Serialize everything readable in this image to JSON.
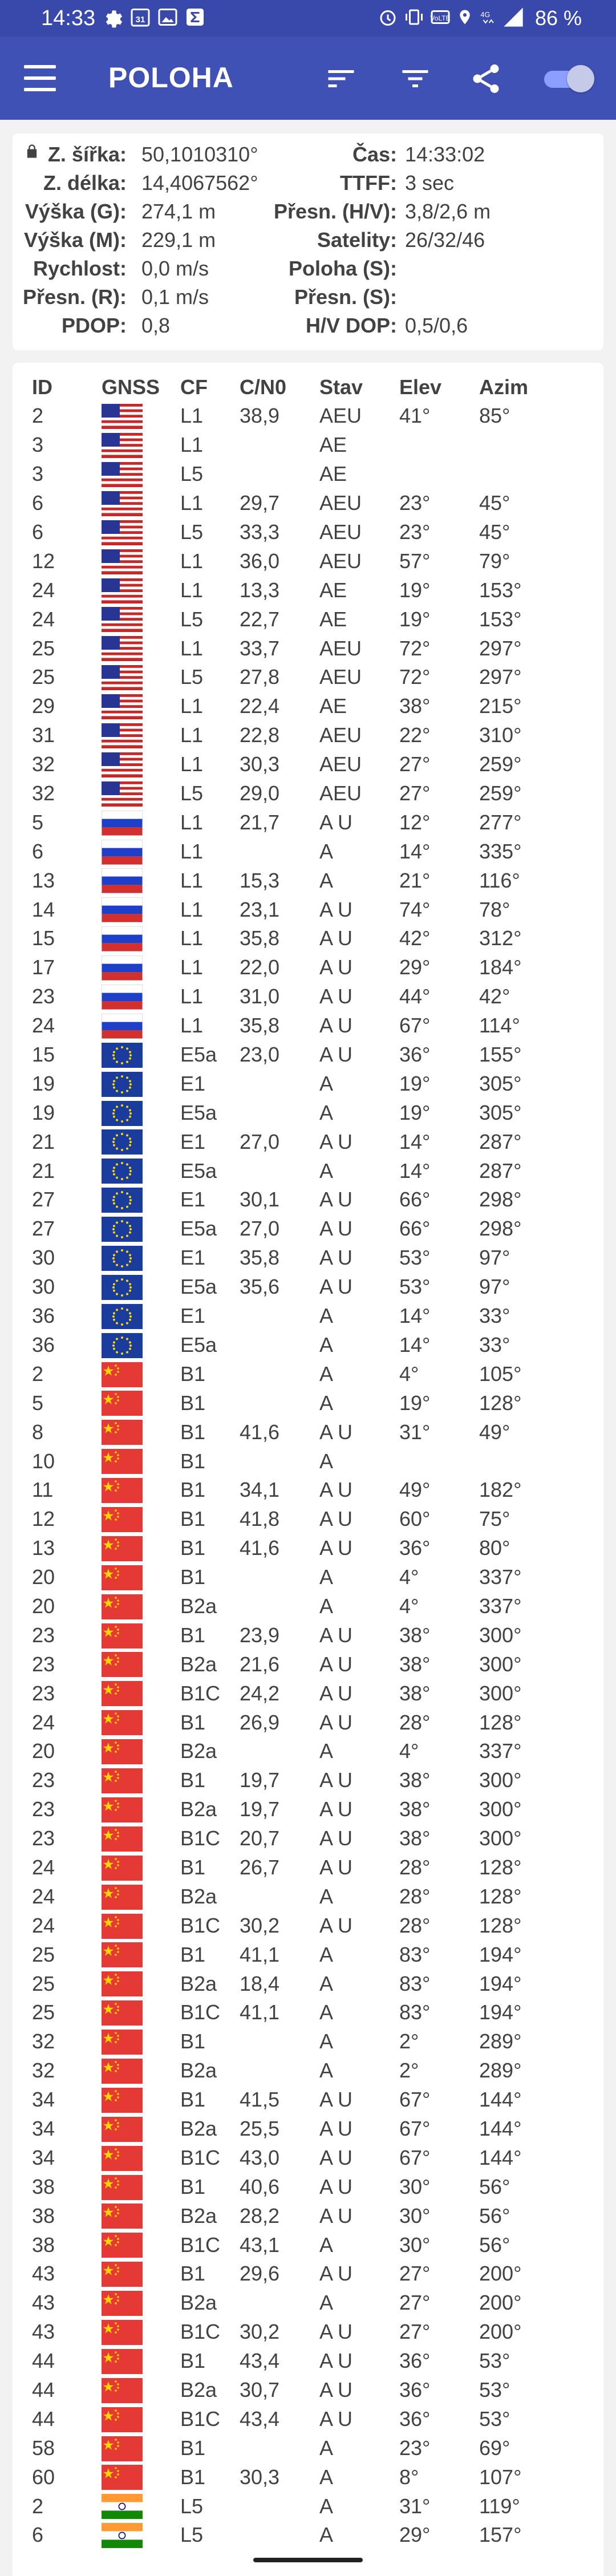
{
  "status_bar": {
    "time": "14:33",
    "notification_icons": [
      "gear-icon",
      "calendar-31-icon",
      "image-icon",
      "sigma-icon"
    ],
    "right_icons": [
      "alarm-icon",
      "vibrate-icon",
      "wifi-calling-icon",
      "location-icon",
      "4g-icon",
      "signal-icon"
    ],
    "battery": "86 %"
  },
  "app_bar": {
    "title": "POLOHA",
    "actions": [
      "menu-icon",
      "sort-icon",
      "filter-icon",
      "share-icon",
      "toggle-switch"
    ],
    "toggle_on": true,
    "primary_color": "#3f51b5"
  },
  "location": {
    "lat_label": "Z. šířka:",
    "lat_value": "50,1010310°",
    "lon_label": "Z. délka:",
    "lon_value": "14,4067562°",
    "alt_g_label": "Výška (G):",
    "alt_g_value": "274,1 m",
    "alt_m_label": "Výška (M):",
    "alt_m_value": "229,1 m",
    "speed_label": "Rychlost:",
    "speed_value": "0,0 m/s",
    "acc_r_label": "Přesn. (R):",
    "acc_r_value": "0,1 m/s",
    "pdop_label": "PDOP:",
    "pdop_value": "0,8",
    "time_label": "Čas:",
    "time_value": "14:33:02",
    "ttff_label": "TTFF:",
    "ttff_value": "3 sec",
    "acc_hv_label": "Přesn. (H/V):",
    "acc_hv_value": "3,8/2,6 m",
    "sats_label": "Satelity:",
    "sats_value": "26/32/46",
    "pos_s_label": "Poloha (S):",
    "pos_s_value": "",
    "acc_s_label": "Přesn. (S):",
    "acc_s_value": "",
    "hvdop_label": "H/V DOP:",
    "hvdop_value": "0,5/0,6"
  },
  "sat_table": {
    "headers": [
      "ID",
      "GNSS",
      "CF",
      "C/N0",
      "Stav",
      "Elev",
      "Azim"
    ],
    "rows": [
      [
        "2",
        "us",
        "L1",
        "38,9",
        "AEU",
        "41°",
        "85°"
      ],
      [
        "3",
        "us",
        "L1",
        "",
        "AE",
        "",
        ""
      ],
      [
        "3",
        "us",
        "L5",
        "",
        "AE",
        "",
        ""
      ],
      [
        "6",
        "us",
        "L1",
        "29,7",
        "AEU",
        "23°",
        "45°"
      ],
      [
        "6",
        "us",
        "L5",
        "33,3",
        "AEU",
        "23°",
        "45°"
      ],
      [
        "12",
        "us",
        "L1",
        "36,0",
        "AEU",
        "57°",
        "79°"
      ],
      [
        "24",
        "us",
        "L1",
        "13,3",
        "AE",
        "19°",
        "153°"
      ],
      [
        "24",
        "us",
        "L5",
        "22,7",
        "AE",
        "19°",
        "153°"
      ],
      [
        "25",
        "us",
        "L1",
        "33,7",
        "AEU",
        "72°",
        "297°"
      ],
      [
        "25",
        "us",
        "L5",
        "27,8",
        "AEU",
        "72°",
        "297°"
      ],
      [
        "29",
        "us",
        "L1",
        "22,4",
        "AE",
        "38°",
        "215°"
      ],
      [
        "31",
        "us",
        "L1",
        "22,8",
        "AEU",
        "22°",
        "310°"
      ],
      [
        "32",
        "us",
        "L1",
        "30,3",
        "AEU",
        "27°",
        "259°"
      ],
      [
        "32",
        "us",
        "L5",
        "29,0",
        "AEU",
        "27°",
        "259°"
      ],
      [
        "5",
        "ru",
        "L1",
        "21,7",
        "A U",
        "12°",
        "277°"
      ],
      [
        "6",
        "ru",
        "L1",
        "",
        "A",
        "14°",
        "335°"
      ],
      [
        "13",
        "ru",
        "L1",
        "15,3",
        "A",
        "21°",
        "116°"
      ],
      [
        "14",
        "ru",
        "L1",
        "23,1",
        "A U",
        "74°",
        "78°"
      ],
      [
        "15",
        "ru",
        "L1",
        "35,8",
        "A U",
        "42°",
        "312°"
      ],
      [
        "17",
        "ru",
        "L1",
        "22,0",
        "A U",
        "29°",
        "184°"
      ],
      [
        "23",
        "ru",
        "L1",
        "31,0",
        "A U",
        "44°",
        "42°"
      ],
      [
        "24",
        "ru",
        "L1",
        "35,8",
        "A U",
        "67°",
        "114°"
      ],
      [
        "15",
        "eu",
        "E5a",
        "23,0",
        "A U",
        "36°",
        "155°"
      ],
      [
        "19",
        "eu",
        "E1",
        "",
        "A",
        "19°",
        "305°"
      ],
      [
        "19",
        "eu",
        "E5a",
        "",
        "A",
        "19°",
        "305°"
      ],
      [
        "21",
        "eu",
        "E1",
        "27,0",
        "A U",
        "14°",
        "287°"
      ],
      [
        "21",
        "eu",
        "E5a",
        "",
        "A",
        "14°",
        "287°"
      ],
      [
        "27",
        "eu",
        "E1",
        "30,1",
        "A U",
        "66°",
        "298°"
      ],
      [
        "27",
        "eu",
        "E5a",
        "27,0",
        "A U",
        "66°",
        "298°"
      ],
      [
        "30",
        "eu",
        "E1",
        "35,8",
        "A U",
        "53°",
        "97°"
      ],
      [
        "30",
        "eu",
        "E5a",
        "35,6",
        "A U",
        "53°",
        "97°"
      ],
      [
        "36",
        "eu",
        "E1",
        "",
        "A",
        "14°",
        "33°"
      ],
      [
        "36",
        "eu",
        "E5a",
        "",
        "A",
        "14°",
        "33°"
      ],
      [
        "2",
        "cn",
        "B1",
        "",
        "A",
        "4°",
        "105°"
      ],
      [
        "5",
        "cn",
        "B1",
        "",
        "A",
        "19°",
        "128°"
      ],
      [
        "8",
        "cn",
        "B1",
        "41,6",
        "A U",
        "31°",
        "49°"
      ],
      [
        "10",
        "cn",
        "B1",
        "",
        "A",
        "",
        ""
      ],
      [
        "11",
        "cn",
        "B1",
        "34,1",
        "A U",
        "49°",
        "182°"
      ],
      [
        "12",
        "cn",
        "B1",
        "41,8",
        "A U",
        "60°",
        "75°"
      ],
      [
        "13",
        "cn",
        "B1",
        "41,6",
        "A U",
        "36°",
        "80°"
      ],
      [
        "20",
        "cn",
        "B1",
        "",
        "A",
        "4°",
        "337°"
      ],
      [
        "20",
        "cn",
        "B2a",
        "",
        "A",
        "4°",
        "337°"
      ],
      [
        "23",
        "cn",
        "B1",
        "23,9",
        "A U",
        "38°",
        "300°"
      ],
      [
        "23",
        "cn",
        "B2a",
        "21,6",
        "A U",
        "38°",
        "300°"
      ],
      [
        "23",
        "cn",
        "B1C",
        "24,2",
        "A U",
        "38°",
        "300°"
      ],
      [
        "24",
        "cn",
        "B1",
        "26,9",
        "A U",
        "28°",
        "128°"
      ],
      [
        "20",
        "cn",
        "B2a",
        "",
        "A",
        "4°",
        "337°"
      ],
      [
        "23",
        "cn",
        "B1",
        "19,7",
        "A U",
        "38°",
        "300°"
      ],
      [
        "23",
        "cn",
        "B2a",
        "19,7",
        "A U",
        "38°",
        "300°"
      ],
      [
        "23",
        "cn",
        "B1C",
        "20,7",
        "A U",
        "38°",
        "300°"
      ],
      [
        "24",
        "cn",
        "B1",
        "26,7",
        "A U",
        "28°",
        "128°"
      ],
      [
        "24",
        "cn",
        "B2a",
        "",
        "A",
        "28°",
        "128°"
      ],
      [
        "24",
        "cn",
        "B1C",
        "30,2",
        "A U",
        "28°",
        "128°"
      ],
      [
        "25",
        "cn",
        "B1",
        "41,1",
        "A",
        "83°",
        "194°"
      ],
      [
        "25",
        "cn",
        "B2a",
        "18,4",
        "A",
        "83°",
        "194°"
      ],
      [
        "25",
        "cn",
        "B1C",
        "41,1",
        "A",
        "83°",
        "194°"
      ],
      [
        "32",
        "cn",
        "B1",
        "",
        "A",
        "2°",
        "289°"
      ],
      [
        "32",
        "cn",
        "B2a",
        "",
        "A",
        "2°",
        "289°"
      ],
      [
        "34",
        "cn",
        "B1",
        "41,5",
        "A U",
        "67°",
        "144°"
      ],
      [
        "34",
        "cn",
        "B2a",
        "25,5",
        "A U",
        "67°",
        "144°"
      ],
      [
        "34",
        "cn",
        "B1C",
        "43,0",
        "A U",
        "67°",
        "144°"
      ],
      [
        "38",
        "cn",
        "B1",
        "40,6",
        "A U",
        "30°",
        "56°"
      ],
      [
        "38",
        "cn",
        "B2a",
        "28,2",
        "A U",
        "30°",
        "56°"
      ],
      [
        "38",
        "cn",
        "B1C",
        "43,1",
        "A",
        "30°",
        "56°"
      ],
      [
        "43",
        "cn",
        "B1",
        "29,6",
        "A U",
        "27°",
        "200°"
      ],
      [
        "43",
        "cn",
        "B2a",
        "",
        "A",
        "27°",
        "200°"
      ],
      [
        "43",
        "cn",
        "B1C",
        "30,2",
        "A U",
        "27°",
        "200°"
      ],
      [
        "44",
        "cn",
        "B1",
        "43,4",
        "A U",
        "36°",
        "53°"
      ],
      [
        "44",
        "cn",
        "B2a",
        "30,7",
        "A U",
        "36°",
        "53°"
      ],
      [
        "44",
        "cn",
        "B1C",
        "43,4",
        "A U",
        "36°",
        "53°"
      ],
      [
        "58",
        "cn",
        "B1",
        "",
        "A",
        "23°",
        "69°"
      ],
      [
        "60",
        "cn",
        "B1",
        "30,3",
        "A",
        "8°",
        "107°"
      ],
      [
        "2",
        "in",
        "L5",
        "",
        "A",
        "31°",
        "119°"
      ],
      [
        "6",
        "in",
        "L5",
        "",
        "A",
        "29°",
        "157°"
      ]
    ]
  }
}
